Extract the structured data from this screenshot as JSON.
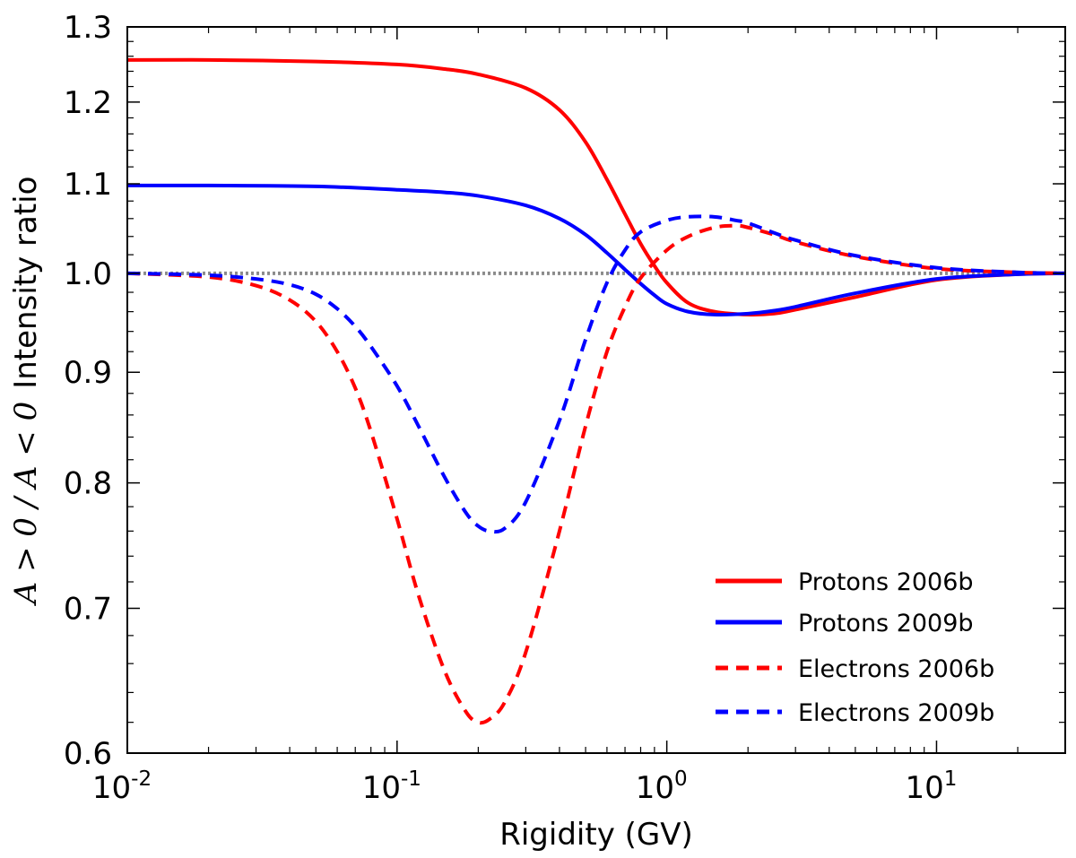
{
  "chart_data": {
    "type": "line",
    "title": "",
    "xlabel": "Rigidity (GV)",
    "ylabel": {
      "prefix": "A > 0 / A < 0",
      "suffix": "Intensity ratio"
    },
    "xscale": "log",
    "yscale": "log",
    "xlim": [
      0.01,
      30
    ],
    "ylim": [
      0.6,
      1.3
    ],
    "x_ticks": [
      {
        "value": 0.01,
        "base": "10",
        "exp": "-2"
      },
      {
        "value": 0.1,
        "base": "10",
        "exp": "-1"
      },
      {
        "value": 1,
        "base": "10",
        "exp": "0"
      },
      {
        "value": 10,
        "base": "10",
        "exp": "1"
      }
    ],
    "y_ticks": [
      {
        "value": 0.6,
        "label": "0.6"
      },
      {
        "value": 0.7,
        "label": "0.7"
      },
      {
        "value": 0.8,
        "label": "0.8"
      },
      {
        "value": 0.9,
        "label": "0.9"
      },
      {
        "value": 1.0,
        "label": "1.0"
      },
      {
        "value": 1.1,
        "label": "1.1"
      },
      {
        "value": 1.2,
        "label": "1.2"
      },
      {
        "value": 1.3,
        "label": "1.3"
      }
    ],
    "reference_line": {
      "y": 1.0,
      "color": "#8c8c8c",
      "style": "dotted"
    },
    "legend_position": "bottom-right",
    "series": [
      {
        "name": "Protons 2006b",
        "color": "#ff0000",
        "style": "solid",
        "x": [
          0.01,
          0.02,
          0.05,
          0.1,
          0.15,
          0.2,
          0.3,
          0.4,
          0.5,
          0.6,
          0.7,
          0.8,
          0.9,
          1.0,
          1.2,
          1.5,
          2.0,
          2.5,
          3.0,
          5.0,
          10.0,
          20.0,
          30.0
        ],
        "y": [
          1.255,
          1.255,
          1.253,
          1.249,
          1.243,
          1.236,
          1.218,
          1.19,
          1.15,
          1.105,
          1.065,
          1.032,
          1.008,
          0.99,
          0.969,
          0.96,
          0.957,
          0.958,
          0.962,
          0.975,
          0.993,
          0.999,
          1.0
        ]
      },
      {
        "name": "Protons 2009b",
        "color": "#0000ff",
        "style": "solid",
        "x": [
          0.01,
          0.02,
          0.05,
          0.1,
          0.15,
          0.2,
          0.3,
          0.4,
          0.5,
          0.6,
          0.7,
          0.8,
          0.9,
          1.0,
          1.2,
          1.5,
          2.0,
          2.5,
          3.0,
          5.0,
          10.0,
          20.0,
          30.0
        ],
        "y": [
          1.098,
          1.098,
          1.097,
          1.093,
          1.09,
          1.086,
          1.075,
          1.06,
          1.042,
          1.022,
          1.004,
          0.989,
          0.977,
          0.968,
          0.96,
          0.957,
          0.958,
          0.961,
          0.965,
          0.979,
          0.994,
          0.999,
          1.0
        ]
      },
      {
        "name": "Electrons 2006b",
        "color": "#ff0000",
        "style": "dashed",
        "x": [
          0.01,
          0.02,
          0.03,
          0.04,
          0.05,
          0.06,
          0.07,
          0.08,
          0.1,
          0.12,
          0.15,
          0.18,
          0.2,
          0.22,
          0.25,
          0.3,
          0.4,
          0.5,
          0.6,
          0.7,
          0.8,
          1.0,
          1.2,
          1.5,
          1.8,
          2.0,
          2.5,
          3.0,
          5.0,
          10.0,
          20.0,
          30.0
        ],
        "y": [
          1.0,
          0.996,
          0.987,
          0.972,
          0.95,
          0.92,
          0.885,
          0.845,
          0.77,
          0.71,
          0.655,
          0.627,
          0.62,
          0.622,
          0.633,
          0.668,
          0.76,
          0.85,
          0.92,
          0.965,
          0.995,
          1.025,
          1.04,
          1.05,
          1.052,
          1.05,
          1.042,
          1.034,
          1.018,
          1.005,
          1.001,
          1.0
        ]
      },
      {
        "name": "Electrons 2009b",
        "color": "#0000ff",
        "style": "dashed",
        "x": [
          0.01,
          0.02,
          0.03,
          0.04,
          0.05,
          0.06,
          0.07,
          0.08,
          0.1,
          0.12,
          0.15,
          0.18,
          0.2,
          0.22,
          0.25,
          0.3,
          0.4,
          0.5,
          0.6,
          0.7,
          0.8,
          1.0,
          1.2,
          1.5,
          1.8,
          2.0,
          2.5,
          3.0,
          5.0,
          10.0,
          20.0,
          30.0
        ],
        "y": [
          1.0,
          0.998,
          0.994,
          0.988,
          0.978,
          0.963,
          0.945,
          0.925,
          0.887,
          0.85,
          0.805,
          0.775,
          0.764,
          0.76,
          0.762,
          0.784,
          0.855,
          0.932,
          0.99,
          1.025,
          1.045,
          1.058,
          1.062,
          1.062,
          1.058,
          1.055,
          1.044,
          1.036,
          1.019,
          1.006,
          1.001,
          1.0
        ]
      }
    ]
  }
}
